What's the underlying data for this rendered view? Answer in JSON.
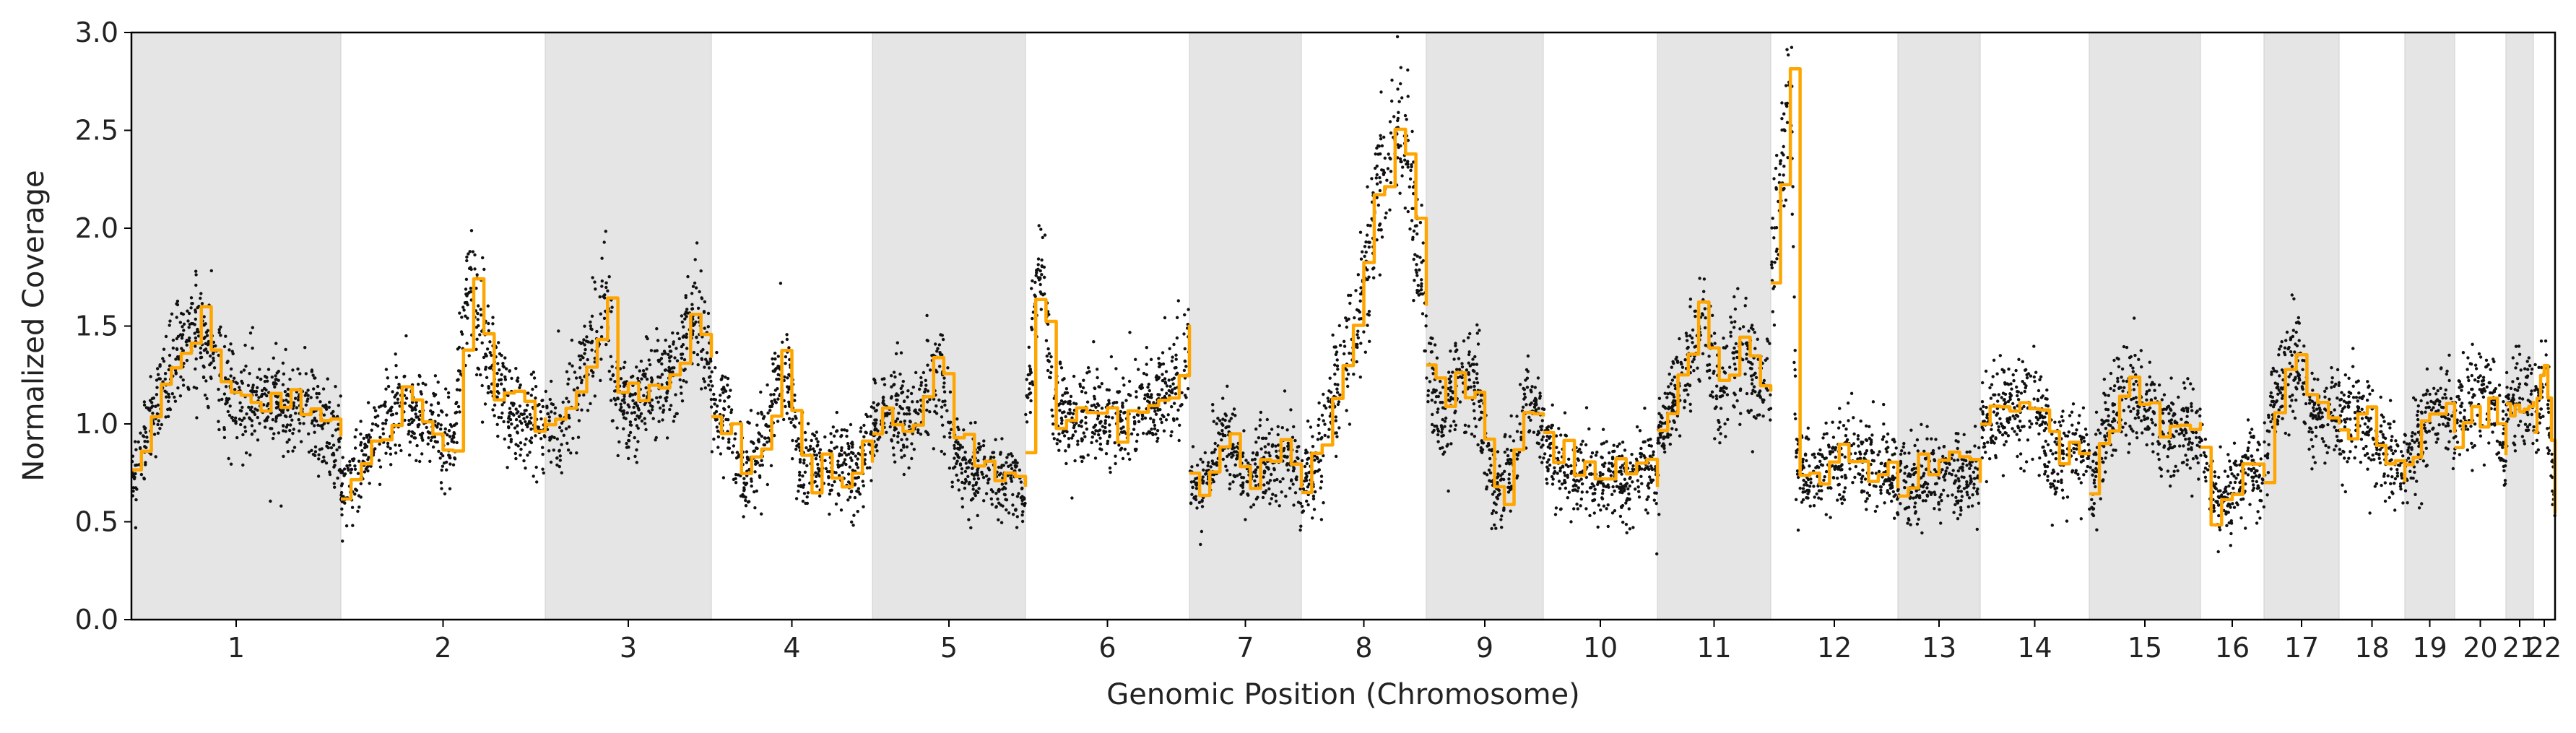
{
  "chart_data": {
    "type": "scatter",
    "xlabel": "Genomic Position (Chromosome)",
    "ylabel": "Normalized Coverage",
    "ylim": [
      0.0,
      3.0
    ],
    "yticks": [
      "0.0",
      "0.5",
      "1.0",
      "1.5",
      "2.0",
      "2.5",
      "3.0"
    ],
    "grid": false,
    "legend": "none",
    "shading": "alternate chromosomes shaded grey",
    "colors": {
      "points": "#111111",
      "segments": "#FFA500",
      "shade": "#e5e5e5"
    },
    "chromosomes": [
      {
        "label": "1",
        "shaded": true,
        "profile": [
          [
            0,
            0.7
          ],
          [
            0.12,
            1.1
          ],
          [
            0.22,
            1.4
          ],
          [
            0.33,
            1.5
          ],
          [
            0.4,
            1.35
          ],
          [
            0.46,
            1.15
          ],
          [
            0.55,
            1.1
          ],
          [
            0.66,
            1.15
          ],
          [
            0.75,
            1.05
          ],
          [
            0.85,
            1.1
          ],
          [
            0.93,
            0.95
          ],
          [
            1,
            0.9
          ]
        ]
      },
      {
        "label": "2",
        "shaded": false,
        "profile": [
          [
            0,
            0.65
          ],
          [
            0.2,
            0.95
          ],
          [
            0.3,
            1.1
          ],
          [
            0.42,
            1.0
          ],
          [
            0.55,
            0.9
          ],
          [
            0.6,
            1.5
          ],
          [
            0.64,
            1.75
          ],
          [
            0.68,
            1.45
          ],
          [
            0.8,
            1.15
          ],
          [
            0.9,
            1.0
          ],
          [
            1,
            1.0
          ]
        ]
      },
      {
        "label": "3",
        "shaded": true,
        "profile": [
          [
            0,
            1.0
          ],
          [
            0.1,
            1.0
          ],
          [
            0.2,
            1.2
          ],
          [
            0.3,
            1.4
          ],
          [
            0.36,
            1.7
          ],
          [
            0.42,
            1.15
          ],
          [
            0.5,
            1.05
          ],
          [
            0.62,
            1.2
          ],
          [
            0.72,
            1.2
          ],
          [
            0.82,
            1.35
          ],
          [
            0.9,
            1.6
          ],
          [
            1,
            1.3
          ]
        ]
      },
      {
        "label": "4",
        "shaded": false,
        "profile": [
          [
            0,
            1.05
          ],
          [
            0.1,
            1.1
          ],
          [
            0.2,
            0.7
          ],
          [
            0.33,
            0.9
          ],
          [
            0.4,
            1.2
          ],
          [
            0.48,
            1.25
          ],
          [
            0.55,
            0.8
          ],
          [
            0.7,
            0.78
          ],
          [
            0.8,
            0.8
          ],
          [
            0.9,
            0.75
          ],
          [
            1,
            0.95
          ]
        ]
      },
      {
        "label": "5",
        "shaded": true,
        "profile": [
          [
            0,
            1.0
          ],
          [
            0.1,
            1.1
          ],
          [
            0.25,
            1.0
          ],
          [
            0.35,
            1.2
          ],
          [
            0.45,
            1.3
          ],
          [
            0.52,
            0.9
          ],
          [
            0.62,
            0.75
          ],
          [
            0.75,
            0.75
          ],
          [
            0.88,
            0.7
          ],
          [
            1,
            0.65
          ]
        ]
      },
      {
        "label": "6",
        "shaded": false,
        "profile": [
          [
            0,
            1.0
          ],
          [
            0.06,
            1.6
          ],
          [
            0.1,
            1.85
          ],
          [
            0.16,
            1.1
          ],
          [
            0.3,
            1.0
          ],
          [
            0.45,
            1.05
          ],
          [
            0.6,
            1.0
          ],
          [
            0.75,
            1.1
          ],
          [
            0.88,
            1.2
          ],
          [
            0.95,
            1.2
          ],
          [
            1,
            1.45
          ]
        ]
      },
      {
        "label": "7",
        "shaded": true,
        "profile": [
          [
            0,
            0.7
          ],
          [
            0.12,
            0.65
          ],
          [
            0.2,
            0.8
          ],
          [
            0.3,
            1.0
          ],
          [
            0.4,
            0.85
          ],
          [
            0.52,
            0.7
          ],
          [
            0.65,
            0.8
          ],
          [
            0.78,
            0.8
          ],
          [
            0.9,
            0.85
          ],
          [
            1,
            0.7
          ]
        ]
      },
      {
        "label": "8",
        "shaded": false,
        "profile": [
          [
            0,
            0.65
          ],
          [
            0.12,
            0.8
          ],
          [
            0.3,
            1.2
          ],
          [
            0.45,
            1.5
          ],
          [
            0.6,
            2.2
          ],
          [
            0.72,
            2.4
          ],
          [
            0.8,
            2.5
          ],
          [
            0.86,
            2.3
          ],
          [
            0.92,
            1.9
          ],
          [
            1,
            1.6
          ]
        ]
      },
      {
        "label": "9",
        "shaded": true,
        "profile": [
          [
            0,
            1.35
          ],
          [
            0.15,
            0.95
          ],
          [
            0.22,
            1.2
          ],
          [
            0.45,
            1.2
          ],
          [
            0.5,
            0.8
          ],
          [
            0.6,
            0.7
          ],
          [
            0.75,
            0.75
          ],
          [
            0.85,
            1.1
          ],
          [
            0.95,
            1.0
          ],
          [
            1,
            1.0
          ]
        ]
      },
      {
        "label": "10",
        "shaded": false,
        "profile": [
          [
            0,
            0.95
          ],
          [
            0.12,
            0.8
          ],
          [
            0.3,
            0.75
          ],
          [
            0.45,
            0.7
          ],
          [
            0.6,
            0.75
          ],
          [
            0.75,
            0.7
          ],
          [
            0.88,
            0.8
          ],
          [
            1,
            0.7
          ]
        ]
      },
      {
        "label": "11",
        "shaded": true,
        "profile": [
          [
            0,
            0.95
          ],
          [
            0.12,
            1.1
          ],
          [
            0.25,
            1.25
          ],
          [
            0.36,
            1.5
          ],
          [
            0.42,
            1.45
          ],
          [
            0.55,
            1.15
          ],
          [
            0.68,
            1.35
          ],
          [
            0.78,
            1.4
          ],
          [
            0.86,
            1.2
          ],
          [
            0.95,
            1.3
          ],
          [
            1,
            1.2
          ]
        ]
      },
      {
        "label": "12",
        "shaded": false,
        "profile": [
          [
            0,
            1.7
          ],
          [
            0.06,
            2.1
          ],
          [
            0.12,
            2.55
          ],
          [
            0.16,
            2.75
          ],
          [
            0.2,
            0.8
          ],
          [
            0.35,
            0.75
          ],
          [
            0.5,
            0.8
          ],
          [
            0.65,
            0.85
          ],
          [
            0.78,
            0.75
          ],
          [
            0.9,
            0.8
          ],
          [
            1,
            0.7
          ]
        ]
      },
      {
        "label": "13",
        "shaded": true,
        "profile": [
          [
            0,
            0.7
          ],
          [
            0.2,
            0.7
          ],
          [
            0.35,
            0.72
          ],
          [
            0.5,
            0.78
          ],
          [
            0.65,
            0.75
          ],
          [
            0.8,
            0.75
          ],
          [
            1,
            0.72
          ]
        ]
      },
      {
        "label": "14",
        "shaded": false,
        "profile": [
          [
            0,
            0.95
          ],
          [
            0.15,
            1.1
          ],
          [
            0.28,
            1.05
          ],
          [
            0.42,
            1.15
          ],
          [
            0.55,
            1.05
          ],
          [
            0.65,
            0.8
          ],
          [
            0.75,
            0.85
          ],
          [
            0.88,
            0.85
          ],
          [
            1,
            0.85
          ]
        ]
      },
      {
        "label": "15",
        "shaded": true,
        "profile": [
          [
            0,
            0.6
          ],
          [
            0.1,
            0.9
          ],
          [
            0.25,
            1.1
          ],
          [
            0.38,
            1.2
          ],
          [
            0.5,
            1.1
          ],
          [
            0.62,
            1.0
          ],
          [
            0.75,
            0.95
          ],
          [
            0.88,
            1.0
          ],
          [
            1,
            0.95
          ]
        ]
      },
      {
        "label": "16",
        "shaded": false,
        "profile": [
          [
            0,
            0.9
          ],
          [
            0.15,
            0.65
          ],
          [
            0.3,
            0.6
          ],
          [
            0.45,
            0.65
          ],
          [
            0.6,
            0.7
          ],
          [
            0.75,
            0.8
          ],
          [
            0.9,
            0.75
          ],
          [
            1,
            0.7
          ]
        ]
      },
      {
        "label": "17",
        "shaded": true,
        "profile": [
          [
            0,
            0.8
          ],
          [
            0.15,
            1.1
          ],
          [
            0.3,
            1.3
          ],
          [
            0.45,
            1.35
          ],
          [
            0.6,
            1.1
          ],
          [
            0.75,
            1.0
          ],
          [
            0.9,
            1.05
          ],
          [
            1,
            1.05
          ]
        ]
      },
      {
        "label": "18",
        "shaded": false,
        "profile": [
          [
            0,
            1.0
          ],
          [
            0.2,
            1.05
          ],
          [
            0.4,
            1.0
          ],
          [
            0.6,
            0.9
          ],
          [
            0.8,
            0.8
          ],
          [
            1,
            0.75
          ]
        ]
      },
      {
        "label": "19",
        "shaded": true,
        "profile": [
          [
            0,
            0.8
          ],
          [
            0.25,
            0.9
          ],
          [
            0.5,
            1.05
          ],
          [
            0.75,
            1.1
          ],
          [
            1,
            1.05
          ]
        ]
      },
      {
        "label": "20",
        "shaded": false,
        "profile": [
          [
            0,
            1.0
          ],
          [
            0.25,
            1.1
          ],
          [
            0.5,
            1.15
          ],
          [
            0.75,
            1.15
          ],
          [
            0.9,
            0.9
          ],
          [
            1,
            0.85
          ]
        ]
      },
      {
        "label": "21",
        "shaded": true,
        "profile": [
          [
            0,
            1.05
          ],
          [
            0.3,
            1.15
          ],
          [
            0.6,
            1.1
          ],
          [
            1,
            1.1
          ]
        ]
      },
      {
        "label": "22",
        "shaded": false,
        "profile": [
          [
            0,
            1.05
          ],
          [
            0.3,
            1.1
          ],
          [
            0.55,
            1.3
          ],
          [
            0.8,
            0.95
          ],
          [
            1,
            0.55
          ]
        ]
      }
    ]
  }
}
